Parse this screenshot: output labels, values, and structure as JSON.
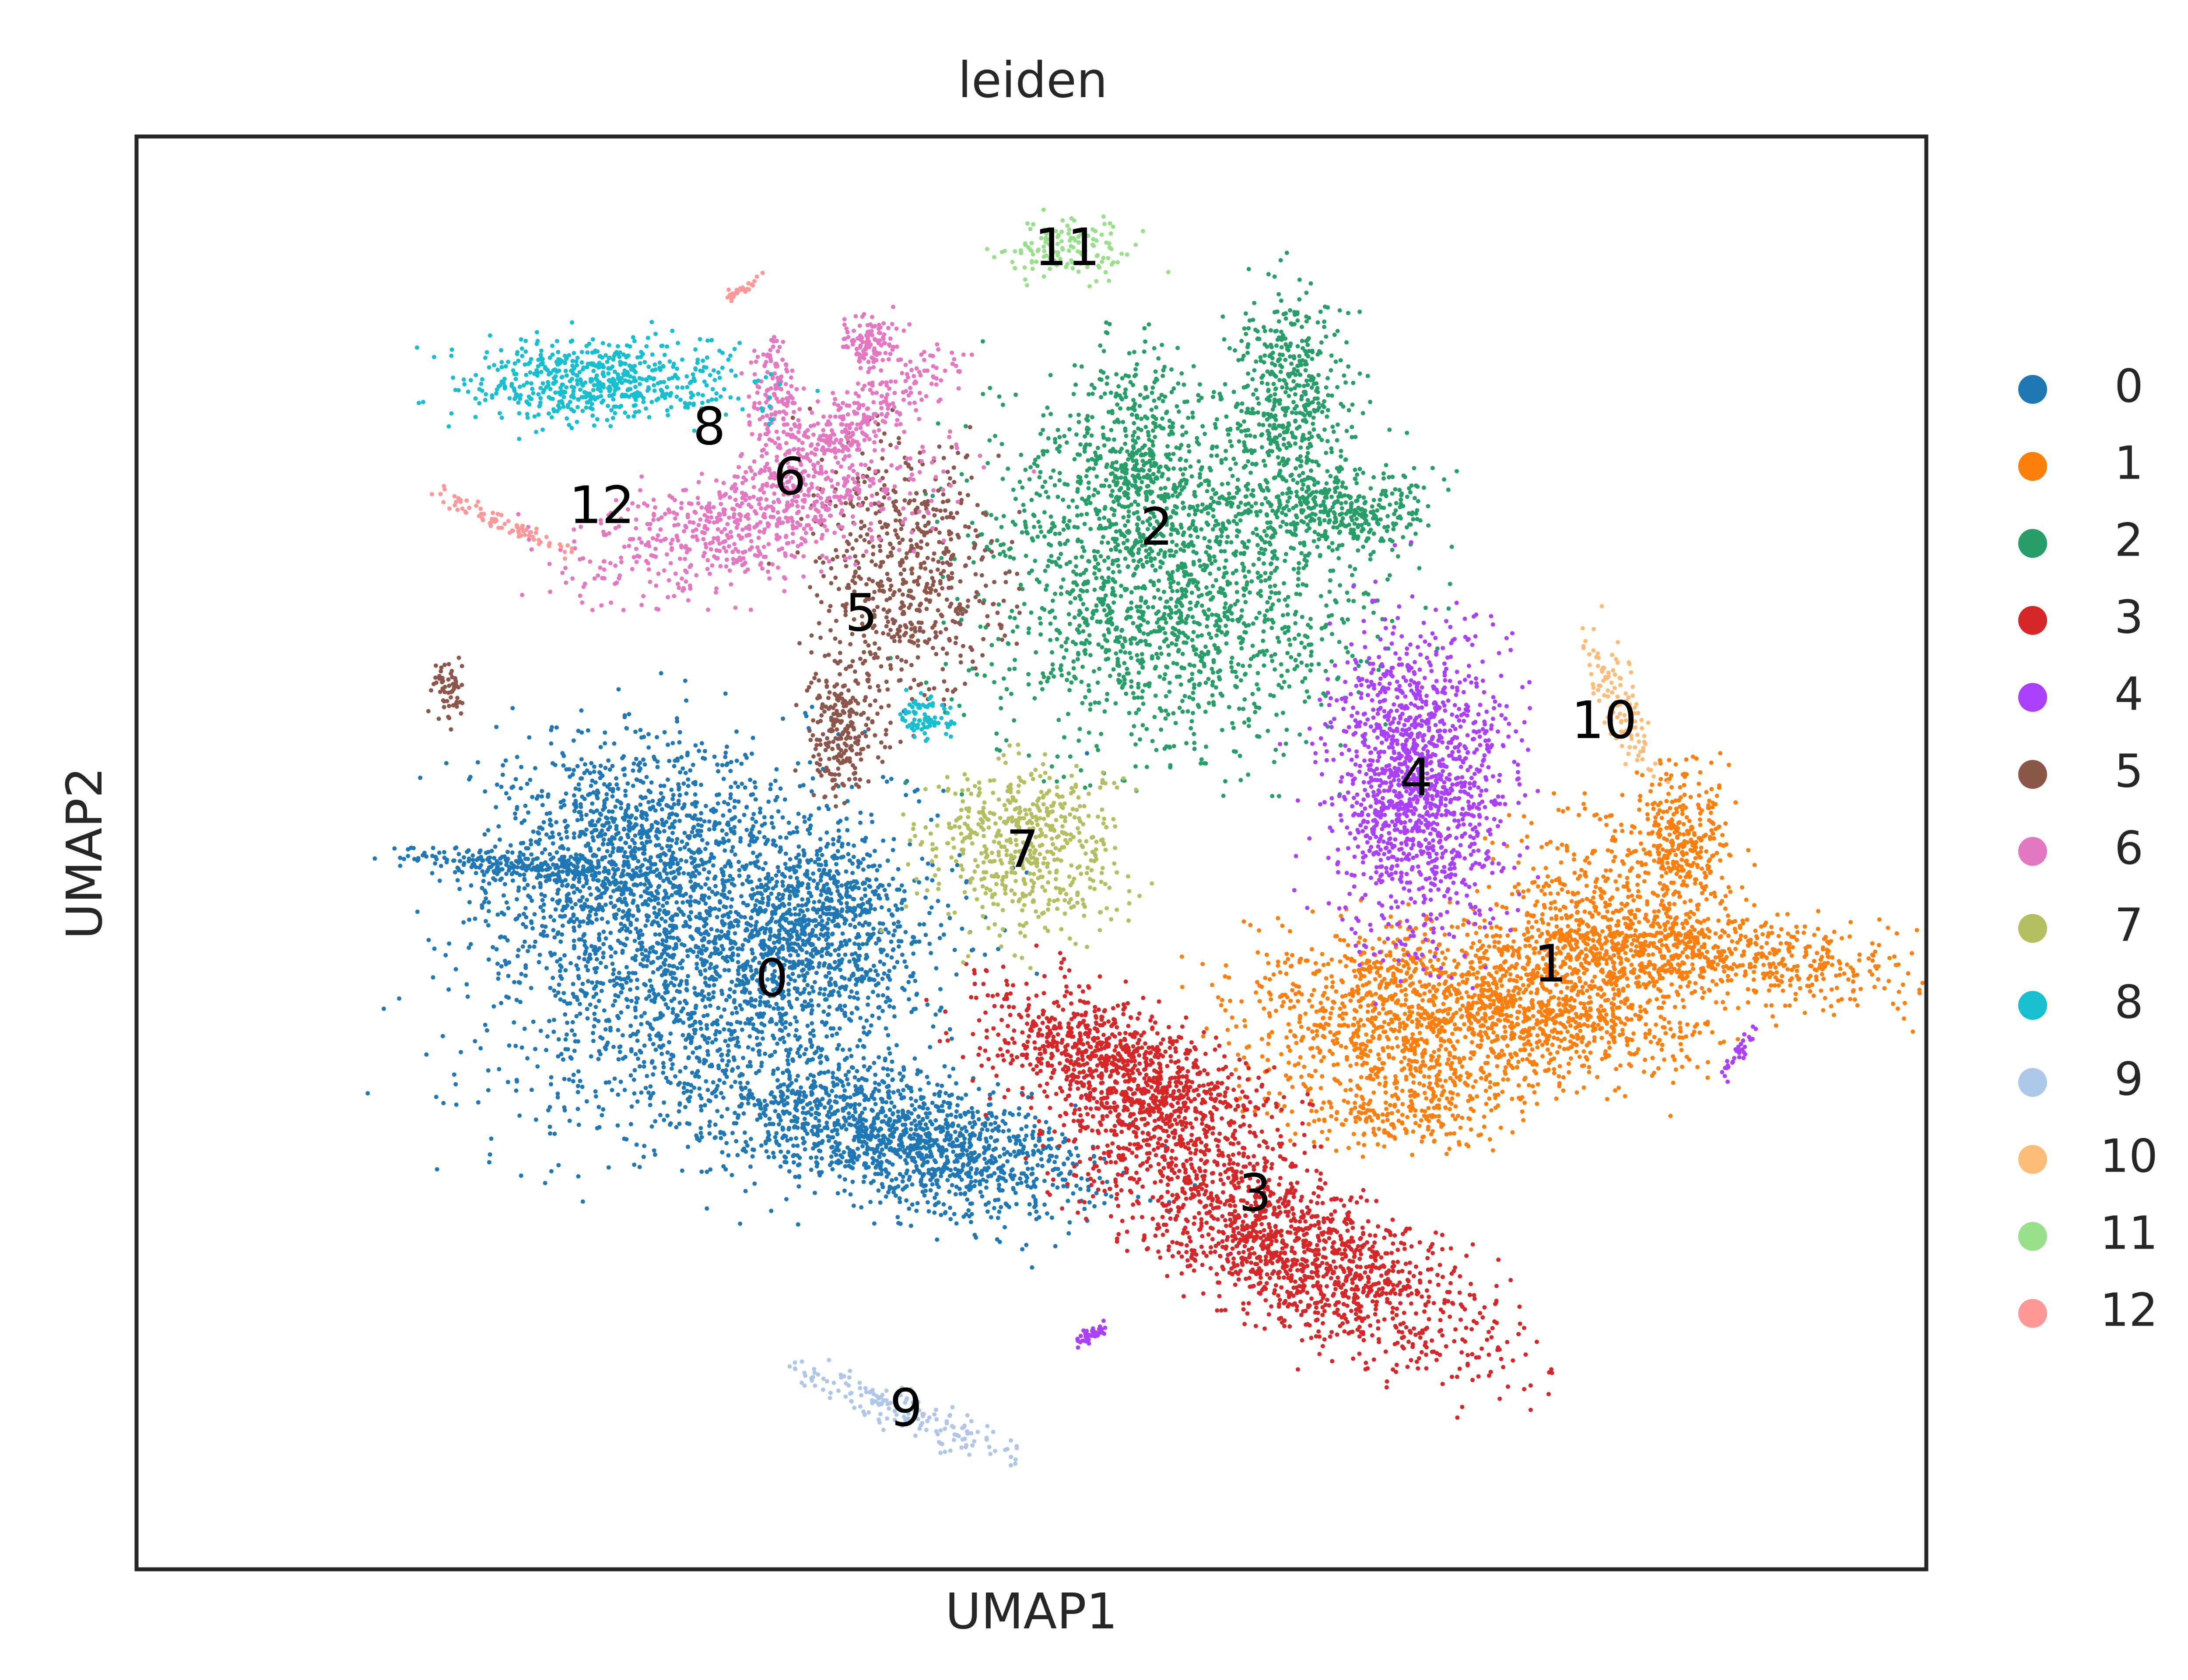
{
  "chart_data": {
    "type": "scatter",
    "title": "leiden",
    "xlabel": "UMAP1",
    "ylabel": "UMAP2",
    "grid": false,
    "xticks": false,
    "yticks": false,
    "legend": {
      "placement": "right",
      "entries": [
        "0",
        "1",
        "2",
        "3",
        "4",
        "5",
        "6",
        "7",
        "8",
        "9",
        "10",
        "11",
        "12"
      ]
    },
    "colors": [
      "#1f77b4",
      "#ff7f0e",
      "#279e68",
      "#d62728",
      "#aa40fc",
      "#8c564b",
      "#e377c2",
      "#b5bd61",
      "#17becf",
      "#aec7e8",
      "#ffbb78",
      "#98df8a",
      "#ff9896"
    ],
    "clusters": [
      {
        "label": "0",
        "label_pos": [
          3.55,
          4.1
        ]
      },
      {
        "label": "1",
        "label_pos": [
          7.9,
          4.2
        ]
      },
      {
        "label": "2",
        "label_pos": [
          5.7,
          7.25
        ]
      },
      {
        "label": "3",
        "label_pos": [
          6.25,
          2.6
        ]
      },
      {
        "label": "4",
        "label_pos": [
          7.15,
          5.5
        ]
      },
      {
        "label": "5",
        "label_pos": [
          4.05,
          6.65
        ]
      },
      {
        "label": "6",
        "label_pos": [
          3.65,
          7.6
        ]
      },
      {
        "label": "7",
        "label_pos": [
          4.95,
          5.0
        ]
      },
      {
        "label": "8",
        "label_pos": [
          3.2,
          7.95
        ]
      },
      {
        "label": "9",
        "label_pos": [
          4.3,
          1.1
        ]
      },
      {
        "label": "10",
        "label_pos": [
          8.2,
          5.9
        ]
      },
      {
        "label": "11",
        "label_pos": [
          5.2,
          9.2
        ]
      },
      {
        "label": "12",
        "label_pos": [
          2.6,
          7.4
        ]
      }
    ],
    "regions": [
      {
        "c": 0,
        "n": 2400,
        "x": 3.2,
        "y": 4.3,
        "sx": 0.65,
        "sy": 0.65,
        "r": -0.25
      },
      {
        "c": 0,
        "n": 1400,
        "x": 4.3,
        "y": 3.0,
        "sx": 0.55,
        "sy": 0.22,
        "r": -0.3
      },
      {
        "c": 0,
        "n": 700,
        "x": 2.7,
        "y": 5.1,
        "sx": 0.35,
        "sy": 0.35,
        "r": 0
      },
      {
        "c": 0,
        "n": 250,
        "x": 2.2,
        "y": 4.9,
        "sx": 0.35,
        "sy": 0.05,
        "r": -0.1
      },
      {
        "c": 0,
        "n": 500,
        "x": 3.8,
        "y": 4.5,
        "sx": 0.25,
        "sy": 0.3,
        "r": 0
      },
      {
        "c": 1,
        "n": 1700,
        "x": 7.4,
        "y": 3.9,
        "sx": 0.6,
        "sy": 0.3,
        "r": 0.05
      },
      {
        "c": 1,
        "n": 700,
        "x": 8.8,
        "y": 4.3,
        "sx": 0.6,
        "sy": 0.15,
        "r": -0.12
      },
      {
        "c": 1,
        "n": 600,
        "x": 8.2,
        "y": 4.4,
        "sx": 0.3,
        "sy": 0.45,
        "r": 0
      },
      {
        "c": 1,
        "n": 300,
        "x": 8.65,
        "y": 5.1,
        "sx": 0.12,
        "sy": 0.25,
        "r": 0
      },
      {
        "c": 1,
        "n": 250,
        "x": 7.1,
        "y": 3.2,
        "sx": 0.3,
        "sy": 0.15,
        "r": 0
      },
      {
        "c": 2,
        "n": 2000,
        "x": 5.8,
        "y": 7.0,
        "sx": 0.55,
        "sy": 0.65,
        "r": 0
      },
      {
        "c": 2,
        "n": 400,
        "x": 6.45,
        "y": 8.2,
        "sx": 0.15,
        "sy": 0.35,
        "r": 0
      },
      {
        "c": 2,
        "n": 300,
        "x": 6.75,
        "y": 7.4,
        "sx": 0.25,
        "sy": 0.15,
        "r": 0
      },
      {
        "c": 2,
        "n": 250,
        "x": 5.55,
        "y": 7.8,
        "sx": 0.15,
        "sy": 0.35,
        "r": 0
      },
      {
        "c": 3,
        "n": 1100,
        "x": 5.55,
        "y": 3.45,
        "sx": 0.45,
        "sy": 0.2,
        "r": -0.6
      },
      {
        "c": 3,
        "n": 1600,
        "x": 6.4,
        "y": 2.3,
        "sx": 0.7,
        "sy": 0.24,
        "r": -0.6
      },
      {
        "c": 4,
        "n": 1400,
        "x": 7.15,
        "y": 5.5,
        "sx": 0.25,
        "sy": 0.55,
        "r": 0
      },
      {
        "c": 4,
        "n": 40,
        "x": 5.35,
        "y": 1.65,
        "sx": 0.05,
        "sy": 0.02,
        "r": 0.6
      },
      {
        "c": 4,
        "n": 30,
        "x": 8.95,
        "y": 3.6,
        "sx": 0.02,
        "sy": 0.1,
        "r": -0.5
      },
      {
        "c": 5,
        "n": 600,
        "x": 4.3,
        "y": 7.0,
        "sx": 0.25,
        "sy": 0.45,
        "r": 0
      },
      {
        "c": 5,
        "n": 250,
        "x": 3.95,
        "y": 5.9,
        "sx": 0.1,
        "sy": 0.25,
        "r": 0
      },
      {
        "c": 5,
        "n": 60,
        "x": 1.75,
        "y": 6.15,
        "sx": 0.05,
        "sy": 0.1,
        "r": 0
      },
      {
        "c": 6,
        "n": 700,
        "x": 3.4,
        "y": 7.3,
        "sx": 0.55,
        "sy": 0.2,
        "r": 0.35
      },
      {
        "c": 6,
        "n": 300,
        "x": 4.0,
        "y": 8.0,
        "sx": 0.35,
        "sy": 0.1,
        "r": 0.7
      },
      {
        "c": 6,
        "n": 120,
        "x": 4.1,
        "y": 8.55,
        "sx": 0.08,
        "sy": 0.1,
        "r": 0
      },
      {
        "c": 6,
        "n": 150,
        "x": 3.55,
        "y": 8.15,
        "sx": 0.07,
        "sy": 0.25,
        "r": 0
      },
      {
        "c": 7,
        "n": 550,
        "x": 4.95,
        "y": 5.05,
        "sx": 0.28,
        "sy": 0.3,
        "r": 0
      },
      {
        "c": 8,
        "n": 600,
        "x": 2.6,
        "y": 8.3,
        "sx": 0.4,
        "sy": 0.15,
        "r": 0
      },
      {
        "c": 8,
        "n": 80,
        "x": 4.4,
        "y": 5.95,
        "sx": 0.07,
        "sy": 0.08,
        "r": 0
      },
      {
        "c": 9,
        "n": 160,
        "x": 4.3,
        "y": 1.1,
        "sx": 0.35,
        "sy": 0.07,
        "r": -0.45
      },
      {
        "c": 10,
        "n": 120,
        "x": 8.3,
        "y": 6.0,
        "sx": 0.06,
        "sy": 0.28,
        "r": 0.3
      },
      {
        "c": 11,
        "n": 130,
        "x": 5.2,
        "y": 9.2,
        "sx": 0.2,
        "sy": 0.11,
        "r": 0
      },
      {
        "c": 12,
        "n": 80,
        "x": 2.05,
        "y": 7.3,
        "sx": 0.22,
        "sy": 0.03,
        "r": -0.5
      },
      {
        "c": 12,
        "n": 30,
        "x": 3.4,
        "y": 8.95,
        "sx": 0.08,
        "sy": 0.015,
        "r": 0.65
      }
    ],
    "xlim": [
      0,
      10
    ],
    "ylim": [
      0,
      10
    ]
  }
}
